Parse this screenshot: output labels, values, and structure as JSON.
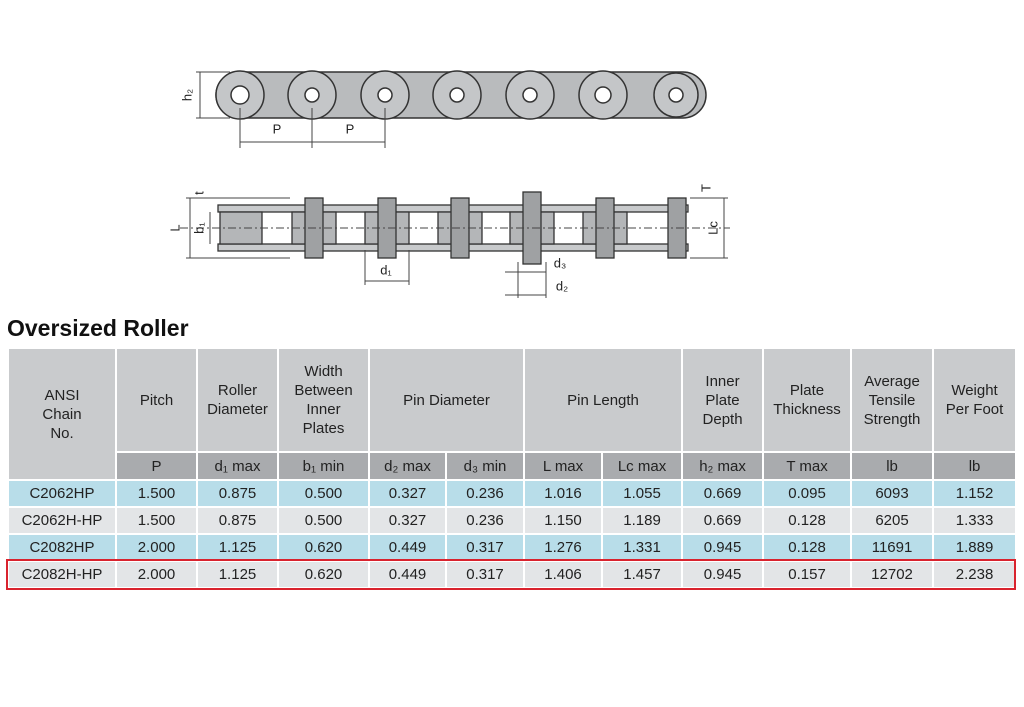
{
  "diagram": {
    "top_labels": [
      "h₂",
      "P",
      "P"
    ],
    "side_labels": [
      "t",
      "L",
      "b₁",
      "d₁",
      "d₃",
      "d₂",
      "T",
      "Lc"
    ]
  },
  "title": "Oversized Roller",
  "table": {
    "headers": [
      "ANSI\nChain\nNo.",
      "Pitch",
      "Roller\nDiameter",
      "Width\nBetween\nInner\nPlates",
      "Pin Diameter",
      "Pin Length",
      "Inner\nPlate\nDepth",
      "Plate\nThickness",
      "Average\nTensile\nStrength",
      "Weight\nPer Foot"
    ],
    "units": [
      "P",
      "d₁ max",
      "b₁ min",
      "d₂ max",
      "d₃ min",
      "L max",
      "Lc max",
      "h₂ max",
      "T max",
      "lb",
      "lb"
    ],
    "rows": [
      [
        "C2062HP",
        "1.500",
        "0.875",
        "0.500",
        "0.327",
        "0.236",
        "1.016",
        "1.055",
        "0.669",
        "0.095",
        "6093",
        "1.152"
      ],
      [
        "C2062H-HP",
        "1.500",
        "0.875",
        "0.500",
        "0.327",
        "0.236",
        "1.150",
        "1.189",
        "0.669",
        "0.128",
        "6205",
        "1.333"
      ],
      [
        "C2082HP",
        "2.000",
        "1.125",
        "0.620",
        "0.449",
        "0.317",
        "1.276",
        "1.331",
        "0.945",
        "0.128",
        "11691",
        "1.889"
      ],
      [
        "C2082H-HP",
        "2.000",
        "1.125",
        "0.620",
        "0.449",
        "0.317",
        "1.406",
        "1.457",
        "0.945",
        "0.157",
        "12702",
        "2.238"
      ]
    ]
  }
}
